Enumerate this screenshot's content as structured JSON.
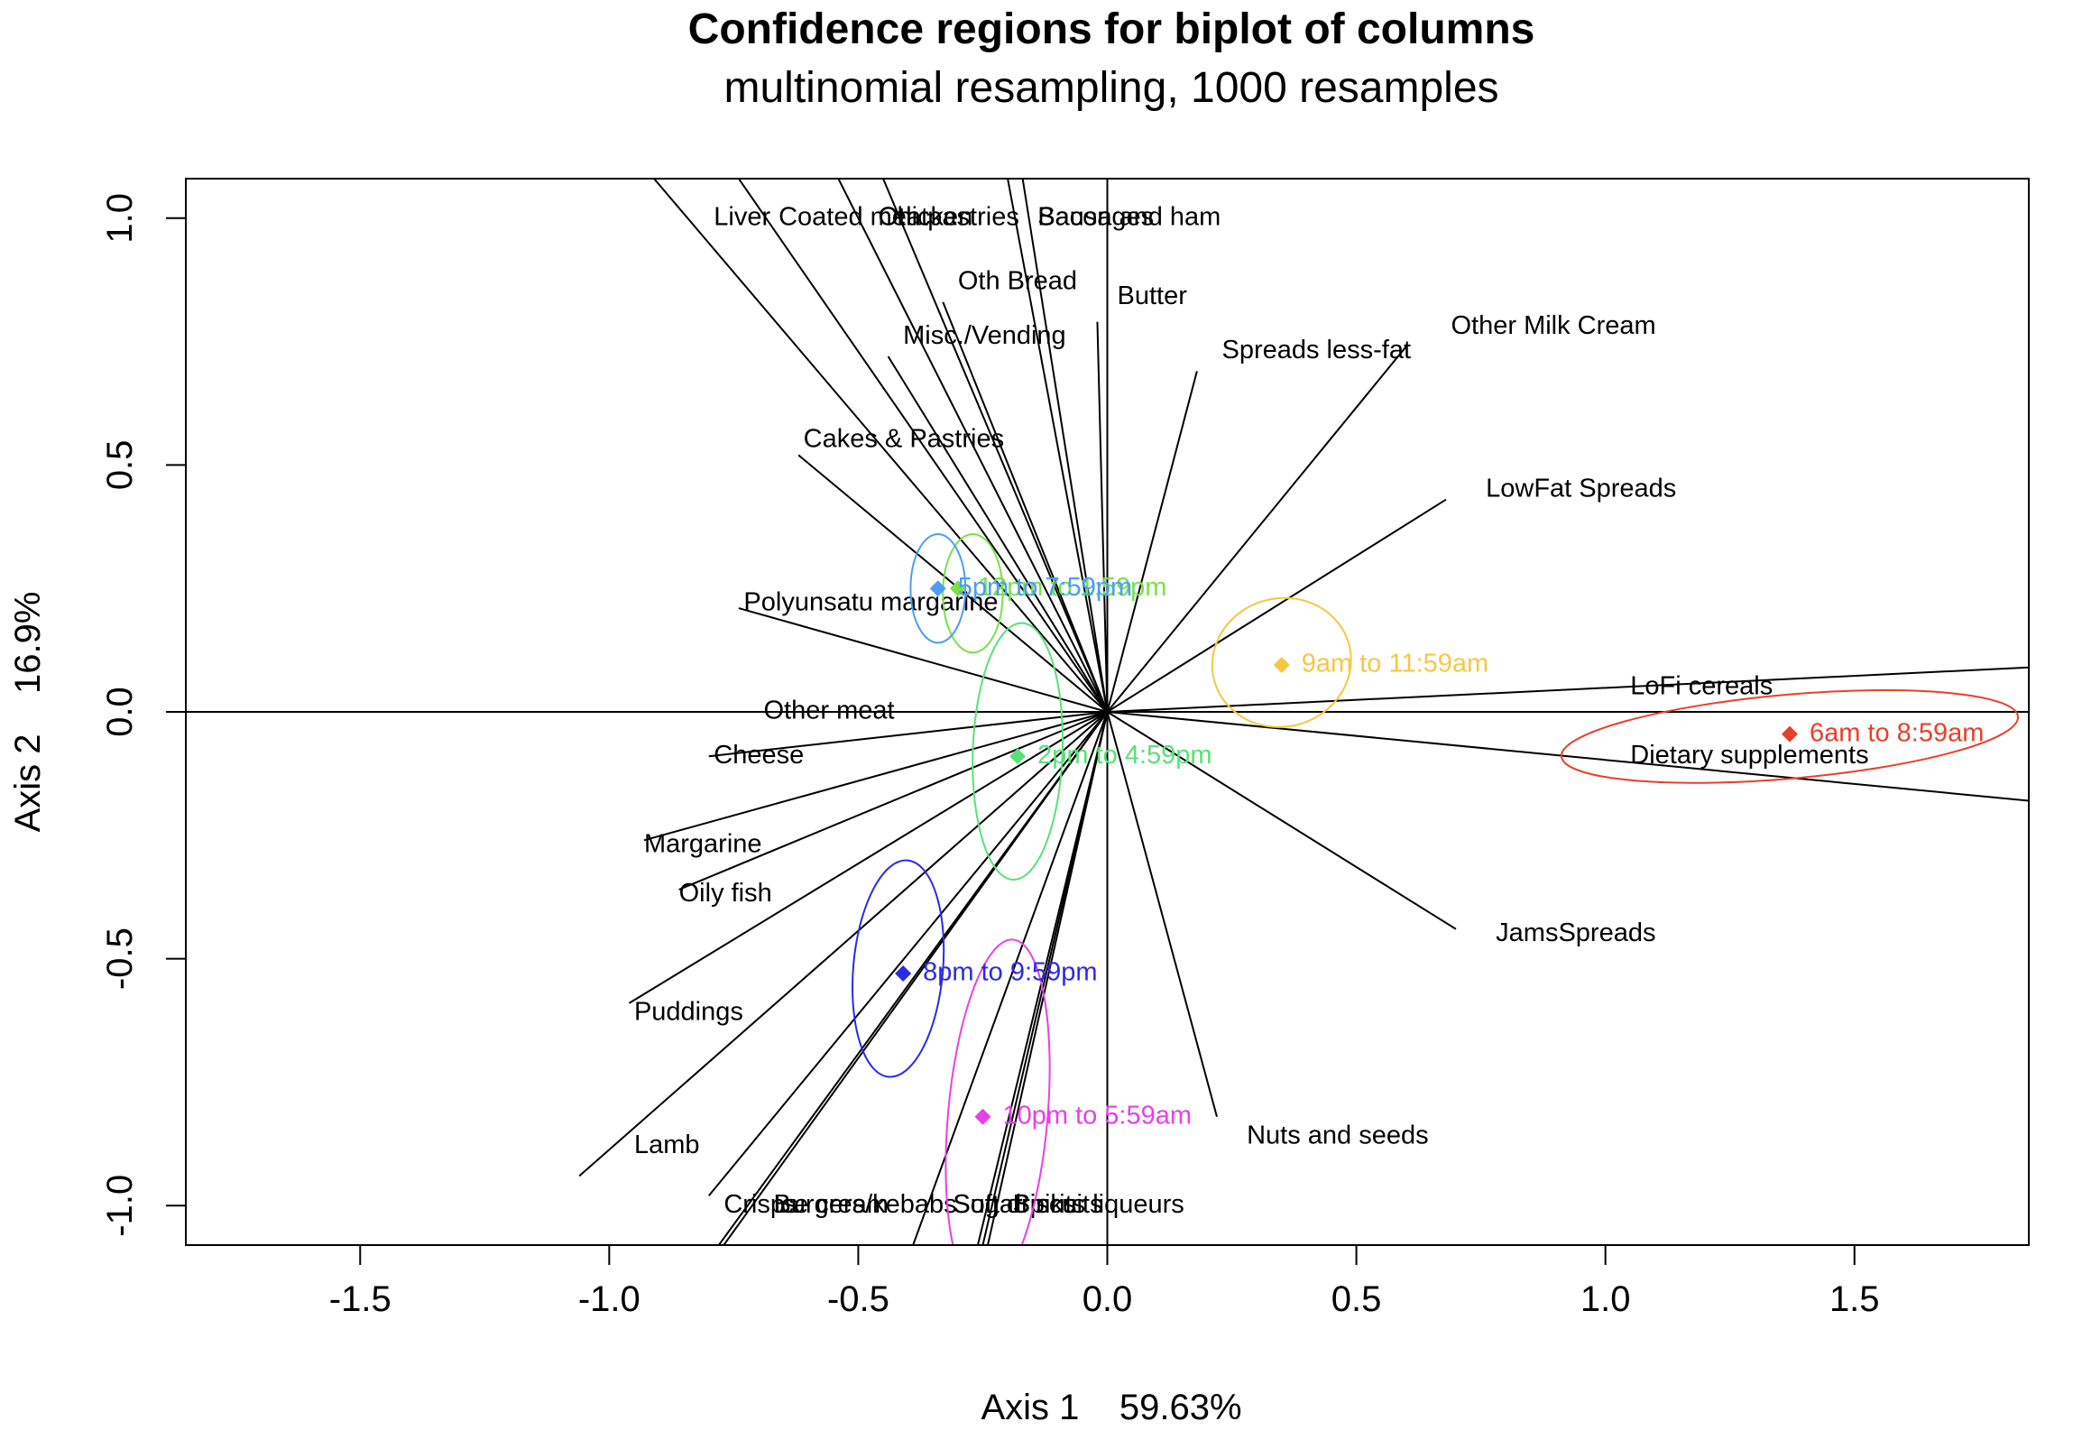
{
  "chart_data": {
    "type": "scatter",
    "title": "Confidence regions for biplot of columns",
    "subtitle": "multinomial resampling,  1000 resamples",
    "xlabel": "Axis 1    59.63%",
    "ylabel": "Axis 2    16.9%",
    "xlim": [
      -1.85,
      1.85
    ],
    "ylim": [
      -1.08,
      1.08
    ],
    "x_ticks": [
      -1.5,
      -1.0,
      -0.5,
      0.0,
      0.5,
      1.0,
      1.5
    ],
    "x_tick_labels": [
      "-1.5",
      "-1.0",
      "-0.5",
      "0.0",
      "0.5",
      "1.0",
      "1.5"
    ],
    "y_ticks": [
      -1.0,
      -0.5,
      0.0,
      0.5,
      1.0
    ],
    "y_tick_labels": [
      "-1.0",
      "-0.5",
      "0.0",
      "0.5",
      "1.0"
    ],
    "grid": false,
    "reference_lines": [
      {
        "axis": "x",
        "value": 0
      },
      {
        "axis": "y",
        "value": 0
      }
    ],
    "variables": [
      {
        "name": "Liver",
        "label_x": -0.79,
        "label_y": 1.0,
        "end_x": -0.91,
        "end_y": 1.08
      },
      {
        "name": "Coated meat",
        "label_x": -0.66,
        "label_y": 1.0,
        "end_x": -0.74,
        "end_y": 1.08
      },
      {
        "name": "Chicken",
        "label_x": -0.46,
        "label_y": 1.0,
        "end_x": -0.54,
        "end_y": 1.08
      },
      {
        "name": "Oth pastries",
        "label_x": -0.46,
        "label_y": 1.0,
        "end_x": -0.45,
        "end_y": 1.08
      },
      {
        "name": "Bacon and ham",
        "label_x": -0.14,
        "label_y": 1.0,
        "end_x": -0.2,
        "end_y": 1.08
      },
      {
        "name": "Sausages",
        "label_x": -0.14,
        "label_y": 1.0,
        "end_x": -0.17,
        "end_y": 1.08
      },
      {
        "name": "Oth Bread",
        "label_x": -0.3,
        "label_y": 0.87,
        "end_x": -0.33,
        "end_y": 0.83
      },
      {
        "name": "Butter",
        "label_x": 0.02,
        "label_y": 0.84,
        "end_x": -0.02,
        "end_y": 0.79
      },
      {
        "name": "Misc./Vending",
        "label_x": -0.41,
        "label_y": 0.76,
        "end_x": -0.44,
        "end_y": 0.72
      },
      {
        "name": "Spreads less-fat",
        "label_x": 0.23,
        "label_y": 0.73,
        "end_x": 0.18,
        "end_y": 0.69
      },
      {
        "name": "Other Milk Cream",
        "label_x": 0.69,
        "label_y": 0.78,
        "end_x": 0.6,
        "end_y": 0.74
      },
      {
        "name": "Cakes & Pastries",
        "label_x": -0.61,
        "label_y": 0.55,
        "end_x": -0.62,
        "end_y": 0.52
      },
      {
        "name": "LowFat Spreads",
        "label_x": 0.76,
        "label_y": 0.45,
        "end_x": 0.68,
        "end_y": 0.43
      },
      {
        "name": "Polyunsatu margarine",
        "label_x": -0.73,
        "label_y": 0.22,
        "end_x": -0.74,
        "end_y": 0.21
      },
      {
        "name": "LoFi cereals",
        "label_x": 1.05,
        "label_y": 0.05,
        "end_x": 1.85,
        "end_y": 0.09
      },
      {
        "name": "Dietary supplements",
        "label_x": 1.05,
        "label_y": -0.09,
        "end_x": 1.85,
        "end_y": -0.18
      },
      {
        "name": "Other meat",
        "label_x": -0.69,
        "label_y": 0.0,
        "end_x": -0.7,
        "end_y": 0.0
      },
      {
        "name": "Cheese",
        "label_x": -0.79,
        "label_y": -0.09,
        "end_x": -0.8,
        "end_y": -0.09
      },
      {
        "name": "Margarine",
        "label_x": -0.93,
        "label_y": -0.27,
        "end_x": -0.93,
        "end_y": -0.26
      },
      {
        "name": "Oily fish",
        "label_x": -0.86,
        "label_y": -0.37,
        "end_x": -0.86,
        "end_y": -0.36
      },
      {
        "name": "JamsSpreads",
        "label_x": 0.78,
        "label_y": -0.45,
        "end_x": 0.7,
        "end_y": -0.44
      },
      {
        "name": "Puddings",
        "label_x": -0.95,
        "label_y": -0.61,
        "end_x": -0.96,
        "end_y": -0.59
      },
      {
        "name": "Lamb",
        "label_x": -0.95,
        "label_y": -0.88,
        "end_x": -1.06,
        "end_y": -0.94
      },
      {
        "name": "Nuts and seeds",
        "label_x": 0.28,
        "label_y": -0.86,
        "end_x": 0.22,
        "end_y": -0.82
      },
      {
        "name": "Crisps",
        "label_x": -0.77,
        "label_y": -1.0,
        "end_x": -0.8,
        "end_y": -0.98
      },
      {
        "name": "Burgers/kebabs",
        "label_x": -0.67,
        "label_y": -1.0,
        "end_x": -0.78,
        "end_y": -1.08
      },
      {
        "name": "Ice cream",
        "label_x": -0.67,
        "label_y": -1.0,
        "end_x": -0.77,
        "end_y": -1.08
      },
      {
        "name": "Sugar",
        "label_x": -0.31,
        "label_y": -1.0,
        "end_x": -0.39,
        "end_y": -1.08
      },
      {
        "name": "Soft drinks",
        "label_x": -0.31,
        "label_y": -1.0,
        "end_x": -0.26,
        "end_y": -1.08
      },
      {
        "name": "Biscuits",
        "label_x": -0.19,
        "label_y": -1.0,
        "end_x": -0.25,
        "end_y": -1.08
      },
      {
        "name": "Spirits liqueurs",
        "label_x": -0.19,
        "label_y": -1.0,
        "end_x": -0.24,
        "end_y": -1.08
      }
    ],
    "series": [
      {
        "name": "6am to 8:59am",
        "color": "#e8402a",
        "x": 1.37,
        "y": -0.045,
        "ellipse": {
          "cx": 1.37,
          "cy": -0.05,
          "rx": 0.46,
          "ry": 0.085,
          "angle": -5
        }
      },
      {
        "name": "9am to 11:59am",
        "color": "#f5c842",
        "x": 0.35,
        "y": 0.095,
        "ellipse": {
          "cx": 0.35,
          "cy": 0.1,
          "rx": 0.14,
          "ry": 0.13,
          "angle": -15
        }
      },
      {
        "name": "12pm to 1:59pm",
        "color": "#7be04a",
        "x": -0.3,
        "y": 0.25,
        "ellipse": {
          "cx": -0.27,
          "cy": 0.24,
          "rx": 0.06,
          "ry": 0.12,
          "angle": 0
        }
      },
      {
        "name": "5pm to 7:59pm",
        "color": "#4a9ef5",
        "x": -0.34,
        "y": 0.25,
        "ellipse": {
          "cx": -0.34,
          "cy": 0.25,
          "rx": 0.055,
          "ry": 0.11,
          "angle": 0
        }
      },
      {
        "name": "2pm to 4:59pm",
        "color": "#5ae07a",
        "x": -0.18,
        "y": -0.09,
        "ellipse": {
          "cx": -0.18,
          "cy": -0.08,
          "rx": 0.09,
          "ry": 0.26,
          "angle": 2
        }
      },
      {
        "name": "8pm to 9:59pm",
        "color": "#2a2ae8",
        "x": -0.41,
        "y": -0.53,
        "ellipse": {
          "cx": -0.42,
          "cy": -0.52,
          "rx": 0.09,
          "ry": 0.22,
          "angle": 5
        }
      },
      {
        "name": "10pm to 5:59am",
        "color": "#e840e8",
        "x": -0.25,
        "y": -0.82,
        "ellipse": {
          "cx": -0.22,
          "cy": -0.82,
          "rx": 0.1,
          "ry": 0.36,
          "angle": 5
        }
      }
    ]
  }
}
